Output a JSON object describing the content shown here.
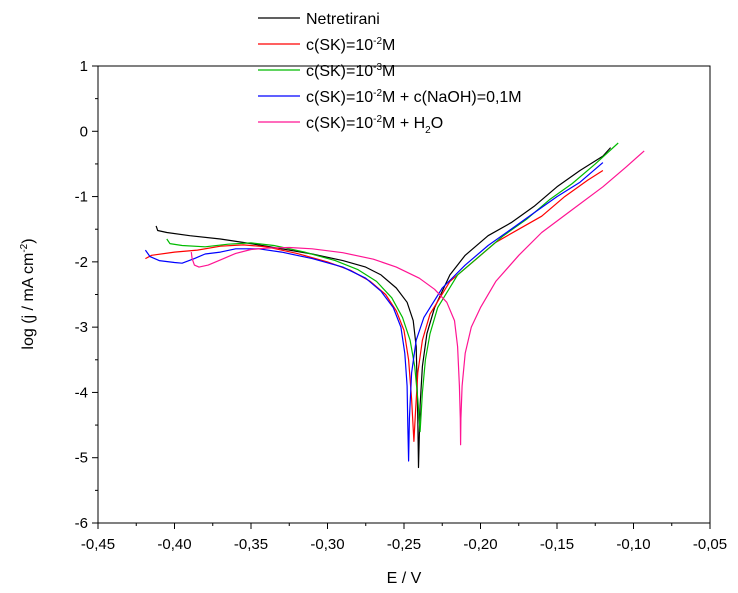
{
  "chart_data": {
    "type": "line",
    "xlabel": "E / V",
    "ylabel": {
      "prefix": "log (j  / mA cm",
      "sup": "-2",
      "suffix": ")"
    },
    "xlim": [
      -0.45,
      -0.05
    ],
    "ylim": [
      -6,
      1
    ],
    "xticks": [
      -0.45,
      -0.4,
      -0.35,
      -0.3,
      -0.25,
      -0.2,
      -0.15,
      -0.1,
      -0.05
    ],
    "xtick_labels": [
      "-0,45",
      "-0,40",
      "-0,35",
      "-0,30",
      "-0,25",
      "-0,20",
      "-0,15",
      "-0,10",
      "-0,05"
    ],
    "yticks": [
      -6,
      -5,
      -4,
      -3,
      -2,
      -1,
      0,
      1
    ],
    "ytick_labels": [
      "-6",
      "-5",
      "-4",
      "-3",
      "-2",
      "-1",
      "0",
      "1"
    ],
    "grid": false,
    "legend_position": "top",
    "series": [
      {
        "name": "Netretirani",
        "legend": [
          {
            "t": "Netretirani"
          }
        ],
        "color": "#000000",
        "points": [
          [
            -0.412,
            -1.45
          ],
          [
            -0.411,
            -1.52
          ],
          [
            -0.405,
            -1.55
          ],
          [
            -0.39,
            -1.6
          ],
          [
            -0.37,
            -1.65
          ],
          [
            -0.35,
            -1.72
          ],
          [
            -0.33,
            -1.8
          ],
          [
            -0.31,
            -1.88
          ],
          [
            -0.29,
            -1.98
          ],
          [
            -0.275,
            -2.08
          ],
          [
            -0.265,
            -2.2
          ],
          [
            -0.255,
            -2.4
          ],
          [
            -0.248,
            -2.62
          ],
          [
            -0.244,
            -2.9
          ],
          [
            -0.242,
            -3.3
          ],
          [
            -0.2415,
            -3.8
          ],
          [
            -0.241,
            -4.4
          ],
          [
            -0.2405,
            -5.15
          ],
          [
            -0.2395,
            -4.2
          ],
          [
            -0.238,
            -3.6
          ],
          [
            -0.235,
            -3.1
          ],
          [
            -0.23,
            -2.7
          ],
          [
            -0.22,
            -2.2
          ],
          [
            -0.21,
            -1.9
          ],
          [
            -0.195,
            -1.6
          ],
          [
            -0.18,
            -1.4
          ],
          [
            -0.165,
            -1.15
          ],
          [
            -0.15,
            -0.85
          ],
          [
            -0.135,
            -0.6
          ],
          [
            -0.12,
            -0.38
          ],
          [
            -0.115,
            -0.25
          ]
        ]
      },
      {
        "name": "c(SK)=10-2M",
        "legend": [
          {
            "t": "c(SK)=10"
          },
          {
            "t": "-2",
            "sup": true
          },
          {
            "t": "M"
          }
        ],
        "color": "#ff0000",
        "points": [
          [
            -0.419,
            -1.95
          ],
          [
            -0.415,
            -1.9
          ],
          [
            -0.4,
            -1.85
          ],
          [
            -0.385,
            -1.82
          ],
          [
            -0.37,
            -1.76
          ],
          [
            -0.355,
            -1.74
          ],
          [
            -0.34,
            -1.77
          ],
          [
            -0.32,
            -1.87
          ],
          [
            -0.3,
            -2.0
          ],
          [
            -0.285,
            -2.13
          ],
          [
            -0.272,
            -2.3
          ],
          [
            -0.262,
            -2.5
          ],
          [
            -0.255,
            -2.75
          ],
          [
            -0.25,
            -3.05
          ],
          [
            -0.247,
            -3.5
          ],
          [
            -0.245,
            -4.1
          ],
          [
            -0.2435,
            -4.75
          ],
          [
            -0.2425,
            -4.3
          ],
          [
            -0.241,
            -3.7
          ],
          [
            -0.238,
            -3.2
          ],
          [
            -0.233,
            -2.8
          ],
          [
            -0.22,
            -2.3
          ],
          [
            -0.205,
            -2.0
          ],
          [
            -0.19,
            -1.7
          ],
          [
            -0.175,
            -1.5
          ],
          [
            -0.16,
            -1.3
          ],
          [
            -0.145,
            -1.0
          ],
          [
            -0.13,
            -0.75
          ],
          [
            -0.12,
            -0.6
          ]
        ]
      },
      {
        "name": "c(SK)=10-3M",
        "legend": [
          {
            "t": "c(SK)=10"
          },
          {
            "t": "-3",
            "sup": true
          },
          {
            "t": "M"
          }
        ],
        "color": "#00bb00",
        "points": [
          [
            -0.405,
            -1.65
          ],
          [
            -0.403,
            -1.72
          ],
          [
            -0.395,
            -1.75
          ],
          [
            -0.38,
            -1.77
          ],
          [
            -0.365,
            -1.73
          ],
          [
            -0.35,
            -1.71
          ],
          [
            -0.335,
            -1.75
          ],
          [
            -0.315,
            -1.85
          ],
          [
            -0.295,
            -1.98
          ],
          [
            -0.28,
            -2.12
          ],
          [
            -0.268,
            -2.3
          ],
          [
            -0.258,
            -2.55
          ],
          [
            -0.251,
            -2.85
          ],
          [
            -0.246,
            -3.2
          ],
          [
            -0.243,
            -3.6
          ],
          [
            -0.241,
            -4.1
          ],
          [
            -0.2395,
            -4.6
          ],
          [
            -0.238,
            -4.0
          ],
          [
            -0.236,
            -3.5
          ],
          [
            -0.233,
            -3.1
          ],
          [
            -0.228,
            -2.7
          ],
          [
            -0.215,
            -2.2
          ],
          [
            -0.2,
            -1.9
          ],
          [
            -0.185,
            -1.6
          ],
          [
            -0.17,
            -1.35
          ],
          [
            -0.155,
            -1.05
          ],
          [
            -0.14,
            -0.8
          ],
          [
            -0.125,
            -0.5
          ],
          [
            -0.11,
            -0.18
          ]
        ]
      },
      {
        "name": "c(SK)=10-2M + c(NaOH)=0,1M",
        "legend": [
          {
            "t": "c(SK)=10"
          },
          {
            "t": "-2",
            "sup": true
          },
          {
            "t": "M + c(NaOH)=0,1M"
          }
        ],
        "color": "#0000ff",
        "points": [
          [
            -0.419,
            -1.82
          ],
          [
            -0.416,
            -1.92
          ],
          [
            -0.41,
            -1.98
          ],
          [
            -0.4,
            -2.01
          ],
          [
            -0.395,
            -2.02
          ],
          [
            -0.387,
            -1.95
          ],
          [
            -0.38,
            -1.88
          ],
          [
            -0.37,
            -1.85
          ],
          [
            -0.36,
            -1.8
          ],
          [
            -0.345,
            -1.8
          ],
          [
            -0.33,
            -1.85
          ],
          [
            -0.31,
            -1.95
          ],
          [
            -0.29,
            -2.08
          ],
          [
            -0.275,
            -2.25
          ],
          [
            -0.265,
            -2.45
          ],
          [
            -0.257,
            -2.7
          ],
          [
            -0.252,
            -3.0
          ],
          [
            -0.2495,
            -3.4
          ],
          [
            -0.248,
            -3.9
          ],
          [
            -0.2475,
            -4.5
          ],
          [
            -0.247,
            -5.05
          ],
          [
            -0.2465,
            -4.4
          ],
          [
            -0.245,
            -3.7
          ],
          [
            -0.242,
            -3.2
          ],
          [
            -0.237,
            -2.85
          ],
          [
            -0.225,
            -2.4
          ],
          [
            -0.21,
            -2.05
          ],
          [
            -0.195,
            -1.75
          ],
          [
            -0.18,
            -1.5
          ],
          [
            -0.165,
            -1.25
          ],
          [
            -0.15,
            -1.0
          ],
          [
            -0.135,
            -0.78
          ],
          [
            -0.12,
            -0.48
          ]
        ]
      },
      {
        "name": "c(SK)=10-2M + H2O",
        "legend": [
          {
            "t": "c(SK)=10"
          },
          {
            "t": "-2",
            "sup": true
          },
          {
            "t": "M + H"
          },
          {
            "t": "2",
            "sub": true
          },
          {
            "t": "O"
          }
        ],
        "color": "#ff1493",
        "points": [
          [
            -0.389,
            -1.85
          ],
          [
            -0.3885,
            -1.95
          ],
          [
            -0.387,
            -2.05
          ],
          [
            -0.384,
            -2.08
          ],
          [
            -0.378,
            -2.05
          ],
          [
            -0.37,
            -1.97
          ],
          [
            -0.36,
            -1.87
          ],
          [
            -0.35,
            -1.81
          ],
          [
            -0.34,
            -1.79
          ],
          [
            -0.325,
            -1.78
          ],
          [
            -0.31,
            -1.8
          ],
          [
            -0.29,
            -1.86
          ],
          [
            -0.27,
            -1.96
          ],
          [
            -0.255,
            -2.08
          ],
          [
            -0.24,
            -2.25
          ],
          [
            -0.23,
            -2.42
          ],
          [
            -0.222,
            -2.62
          ],
          [
            -0.217,
            -2.9
          ],
          [
            -0.215,
            -3.3
          ],
          [
            -0.2138,
            -3.9
          ],
          [
            -0.2132,
            -4.4
          ],
          [
            -0.213,
            -4.8
          ],
          [
            -0.2128,
            -4.4
          ],
          [
            -0.212,
            -3.9
          ],
          [
            -0.21,
            -3.4
          ],
          [
            -0.206,
            -3.0
          ],
          [
            -0.2,
            -2.7
          ],
          [
            -0.19,
            -2.3
          ],
          [
            -0.175,
            -1.9
          ],
          [
            -0.16,
            -1.55
          ],
          [
            -0.14,
            -1.2
          ],
          [
            -0.12,
            -0.85
          ],
          [
            -0.105,
            -0.55
          ],
          [
            -0.093,
            -0.3
          ]
        ]
      }
    ]
  }
}
